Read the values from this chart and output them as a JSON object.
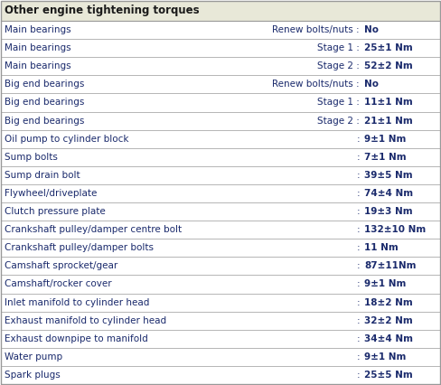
{
  "title": "Other engine tightening torques",
  "title_bg": "#e8e8d8",
  "rows": [
    {
      "col1": "Main bearings",
      "col2": "Renew bolts/nuts :",
      "col3": "No"
    },
    {
      "col1": "Main bearings",
      "col2": "Stage 1 :",
      "col3": "25±1 Nm"
    },
    {
      "col1": "Main bearings",
      "col2": "Stage 2 :",
      "col3": "52±2 Nm"
    },
    {
      "col1": "Big end bearings",
      "col2": "Renew bolts/nuts :",
      "col3": "No"
    },
    {
      "col1": "Big end bearings",
      "col2": "Stage 1 :",
      "col3": "11±1 Nm"
    },
    {
      "col1": "Big end bearings",
      "col2": "Stage 2 :",
      "col3": "21±1 Nm"
    },
    {
      "col1": "Oil pump to cylinder block",
      "col2": ":",
      "col3": "9±1 Nm"
    },
    {
      "col1": "Sump bolts",
      "col2": ":",
      "col3": "7±1 Nm"
    },
    {
      "col1": "Sump drain bolt",
      "col2": ":",
      "col3": "39±5 Nm"
    },
    {
      "col1": "Flywheel/driveplate",
      "col2": ":",
      "col3": "74±4 Nm"
    },
    {
      "col1": "Clutch pressure plate",
      "col2": ":",
      "col3": "19±3 Nm"
    },
    {
      "col1": "Crankshaft pulley/damper centre bolt",
      "col2": ":",
      "col3": "132±10 Nm"
    },
    {
      "col1": "Crankshaft pulley/damper bolts",
      "col2": ":",
      "col3": "11 Nm"
    },
    {
      "col1": "Camshaft sprocket/gear",
      "col2": ":",
      "col3": "87±11Nm"
    },
    {
      "col1": "Camshaft/rocker cover",
      "col2": ":",
      "col3": "9±1 Nm"
    },
    {
      "col1": "Inlet manifold to cylinder head",
      "col2": ":",
      "col3": "18±2 Nm"
    },
    {
      "col1": "Exhaust manifold to cylinder head",
      "col2": ":",
      "col3": "32±2 Nm"
    },
    {
      "col1": "Exhaust downpipe to manifold",
      "col2": ":",
      "col3": "34±4 Nm"
    },
    {
      "col1": "Water pump",
      "col2": ":",
      "col3": "9±1 Nm"
    },
    {
      "col1": "Spark plugs",
      "col2": ":",
      "col3": "25±5 Nm"
    }
  ],
  "row_bg": "#ffffff",
  "border_color": "#999999",
  "text_color": "#1a2a6c",
  "title_text_color": "#1a1a1a",
  "font_size": 7.5,
  "title_font_size": 8.5,
  "figsize": [
    4.88,
    4.26
  ],
  "dpi": 100
}
